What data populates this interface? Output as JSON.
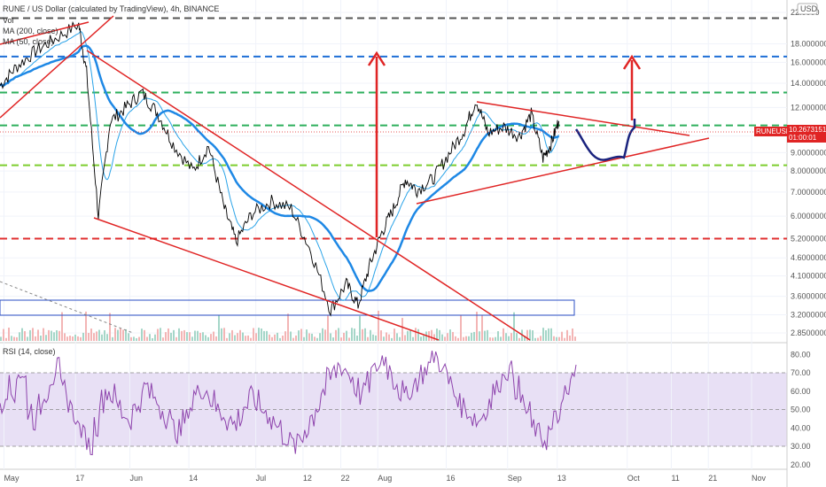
{
  "header": {
    "symbol_line": "RUNE / US Dollar (calculated by TradingView), 4h, BINANCE",
    "vol_label": "Vol",
    "ma200_label": "MA (200, close)",
    "ma50_label": "MA (50, close)",
    "currency_button": "USD"
  },
  "rsi": {
    "label": "RSI (14, close)",
    "ticks": [
      "80.00",
      "70.00",
      "60.00",
      "50.00",
      "40.00",
      "30.00",
      "20.00"
    ],
    "values": [
      80,
      70,
      60,
      50,
      40,
      30,
      20
    ],
    "upper_band": 70,
    "lower_band": 30,
    "series_approx": [
      55,
      62,
      58,
      70,
      66,
      50,
      45,
      52,
      60,
      68,
      72,
      60,
      55,
      48,
      40,
      35,
      30,
      42,
      55,
      60,
      58,
      52,
      48,
      45,
      50,
      55,
      62,
      58,
      54,
      50,
      46,
      40,
      38,
      44,
      52,
      58,
      62,
      60,
      55,
      50,
      48,
      44,
      42,
      46,
      52,
      56,
      54,
      50,
      48,
      44,
      40,
      36,
      32,
      30,
      34,
      40,
      46,
      52,
      60,
      66,
      70,
      74,
      72,
      68,
      62,
      58,
      64,
      70,
      74,
      78,
      72,
      66,
      60,
      56,
      62,
      66,
      70,
      74,
      80,
      76,
      70,
      64,
      58,
      52,
      50,
      46,
      44,
      48,
      54,
      60,
      66,
      72,
      70,
      62,
      54,
      48,
      40,
      36,
      34,
      38,
      44,
      50,
      58,
      66,
      74
    ]
  },
  "chart_data": {
    "type": "line",
    "title": "RUNE / US Dollar (calculated by TradingView), 4h, BINANCE",
    "y_scale": "log",
    "price_ticks": [
      "22.0000",
      "18.0000000",
      "16.0000000",
      "14.0000000",
      "12.0000000",
      "10.0000000",
      "9.0000000",
      "8.0000000",
      "7.0000000",
      "6.0000000",
      "5.2000000",
      "4.6000000",
      "4.1000000",
      "3.6000000",
      "3.2000000",
      "2.8500000"
    ],
    "price_tick_values": [
      22,
      18,
      16,
      14,
      12,
      10,
      9,
      8,
      7,
      6,
      5.2,
      4.6,
      4.1,
      3.6,
      3.2,
      2.85
    ],
    "x_ticks": [
      "May",
      "17",
      "Jun",
      "14",
      "Jul",
      "12",
      "22",
      "Aug",
      "16",
      "Sep",
      "13",
      "Oct",
      "11",
      "21",
      "Nov"
    ],
    "current_price": {
      "symbol": "RUNEUSD",
      "value": "10.2673151",
      "countdown": "01:00:01",
      "price": 10.2673151
    },
    "horizontal_levels": [
      {
        "price": 21.2,
        "color": "#555555"
      },
      {
        "price": 16.6,
        "color": "#1e6fd6"
      },
      {
        "price": 13.2,
        "color": "#2eaf5c"
      },
      {
        "price": 10.7,
        "color": "#2eaf5c"
      },
      {
        "price": 8.3,
        "color": "#7dce2f"
      },
      {
        "price": 5.2,
        "color": "#e03030"
      }
    ],
    "price_series_approx": [
      {
        "t": 0,
        "p": 13.8
      },
      {
        "t": 0.02,
        "p": 15.5
      },
      {
        "t": 0.045,
        "p": 17.2
      },
      {
        "t": 0.07,
        "p": 18.6
      },
      {
        "t": 0.1,
        "p": 20.4
      },
      {
        "t": 0.11,
        "p": 15.0
      },
      {
        "t": 0.125,
        "p": 6.0
      },
      {
        "t": 0.14,
        "p": 11.0
      },
      {
        "t": 0.16,
        "p": 12.0
      },
      {
        "t": 0.18,
        "p": 13.2
      },
      {
        "t": 0.2,
        "p": 11.6
      },
      {
        "t": 0.22,
        "p": 9.5
      },
      {
        "t": 0.245,
        "p": 8.0
      },
      {
        "t": 0.265,
        "p": 9.4
      },
      {
        "t": 0.285,
        "p": 6.3
      },
      {
        "t": 0.3,
        "p": 5.1
      },
      {
        "t": 0.32,
        "p": 6.1
      },
      {
        "t": 0.345,
        "p": 6.6
      },
      {
        "t": 0.37,
        "p": 6.3
      },
      {
        "t": 0.395,
        "p": 4.8
      },
      {
        "t": 0.42,
        "p": 3.3
      },
      {
        "t": 0.44,
        "p": 3.9
      },
      {
        "t": 0.455,
        "p": 3.4
      },
      {
        "t": 0.47,
        "p": 4.4
      },
      {
        "t": 0.485,
        "p": 5.4
      },
      {
        "t": 0.5,
        "p": 6.3
      },
      {
        "t": 0.515,
        "p": 7.6
      },
      {
        "t": 0.53,
        "p": 7.1
      },
      {
        "t": 0.55,
        "p": 7.6
      },
      {
        "t": 0.57,
        "p": 8.9
      },
      {
        "t": 0.59,
        "p": 10.4
      },
      {
        "t": 0.605,
        "p": 12.6
      },
      {
        "t": 0.62,
        "p": 10.2
      },
      {
        "t": 0.64,
        "p": 10.6
      },
      {
        "t": 0.66,
        "p": 10.0
      },
      {
        "t": 0.675,
        "p": 11.5
      },
      {
        "t": 0.69,
        "p": 8.7
      },
      {
        "t": 0.7,
        "p": 9.5
      },
      {
        "t": 0.71,
        "p": 11.0
      }
    ]
  }
}
